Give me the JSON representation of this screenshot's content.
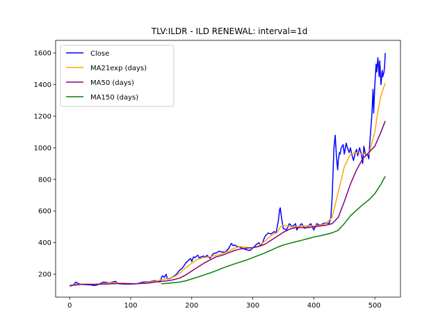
{
  "chart_data": {
    "type": "line",
    "title": "TLV:ILDR - ILD RENEWAL: interval=1d",
    "xlabel": "",
    "ylabel": "",
    "xlim": [
      -23,
      542
    ],
    "ylim": [
      55,
      1680
    ],
    "xticks": [
      0,
      100,
      200,
      300,
      400,
      500
    ],
    "yticks": [
      200,
      400,
      600,
      800,
      1000,
      1200,
      1400,
      1600
    ],
    "grid": false,
    "legend": "top-left",
    "series": [
      {
        "name": "Close",
        "color": "#0000ff",
        "x": [
          0,
          5,
          8,
          10,
          12,
          15,
          20,
          30,
          35,
          40,
          45,
          50,
          55,
          60,
          65,
          70,
          75,
          80,
          90,
          100,
          110,
          120,
          130,
          140,
          145,
          148,
          150,
          152,
          155,
          158,
          160,
          165,
          170,
          175,
          180,
          185,
          190,
          195,
          198,
          200,
          203,
          205,
          210,
          213,
          215,
          220,
          222,
          225,
          230,
          235,
          240,
          245,
          250,
          255,
          260,
          265,
          268,
          270,
          275,
          280,
          285,
          290,
          295,
          300,
          305,
          310,
          313,
          315,
          320,
          325,
          330,
          335,
          338,
          340,
          342,
          344,
          345,
          347,
          350,
          355,
          360,
          365,
          370,
          372,
          375,
          380,
          385,
          390,
          395,
          400,
          405,
          410,
          415,
          420,
          425,
          428,
          430,
          433,
          435,
          437,
          439,
          440,
          442,
          443,
          445,
          448,
          450,
          453,
          455,
          458,
          460,
          462,
          465,
          468,
          470,
          472,
          475,
          478,
          480,
          482,
          485,
          488,
          490,
          492,
          495,
          497,
          498,
          500,
          502,
          503,
          505,
          507,
          508,
          510,
          512,
          513,
          515,
          516,
          517
        ],
        "y": [
          125,
          130,
          140,
          150,
          145,
          140,
          135,
          133,
          132,
          128,
          132,
          140,
          150,
          148,
          145,
          150,
          155,
          140,
          138,
          138,
          140,
          150,
          152,
          160,
          155,
          150,
          175,
          190,
          180,
          200,
          170,
          175,
          185,
          200,
          225,
          240,
          270,
          290,
          300,
          280,
          310,
          305,
          320,
          300,
          310,
          315,
          305,
          320,
          300,
          330,
          335,
          345,
          340,
          340,
          360,
          395,
          380,
          385,
          375,
          370,
          360,
          355,
          350,
          365,
          385,
          400,
          380,
          390,
          440,
          460,
          455,
          470,
          460,
          500,
          540,
          610,
          620,
          560,
          490,
          480,
          520,
          500,
          520,
          480,
          500,
          520,
          490,
          500,
          520,
          480,
          520,
          510,
          520,
          525,
          520,
          560,
          690,
          1000,
          1080,
          950,
          860,
          920,
          970,
          960,
          1000,
          1020,
          960,
          1030,
          1000,
          970,
          1000,
          960,
          920,
          970,
          990,
          950,
          1000,
          960,
          900,
          1010,
          950,
          960,
          930,
          1050,
          1200,
          1370,
          1220,
          1400,
          1530,
          1480,
          1570,
          1450,
          1550,
          1400,
          1490,
          1450,
          1480,
          1520,
          1600
        ]
      },
      {
        "name": "MA21exp (days)",
        "color": "#ffa500",
        "x": [
          0,
          10,
          20,
          30,
          40,
          50,
          60,
          70,
          80,
          90,
          100,
          110,
          120,
          130,
          140,
          150,
          160,
          170,
          180,
          190,
          200,
          210,
          220,
          230,
          240,
          250,
          260,
          270,
          280,
          290,
          300,
          310,
          320,
          330,
          340,
          345,
          350,
          360,
          370,
          380,
          390,
          400,
          410,
          420,
          430,
          440,
          450,
          460,
          470,
          480,
          490,
          500,
          505,
          510,
          517
        ],
        "y": [
          128,
          135,
          138,
          138,
          136,
          137,
          143,
          146,
          145,
          142,
          140,
          140,
          145,
          150,
          155,
          165,
          172,
          182,
          205,
          240,
          270,
          295,
          305,
          310,
          320,
          330,
          345,
          365,
          375,
          370,
          365,
          380,
          410,
          445,
          465,
          500,
          510,
          500,
          500,
          505,
          505,
          505,
          510,
          520,
          560,
          720,
          880,
          960,
          970,
          960,
          960,
          1100,
          1230,
          1330,
          1410
        ]
      },
      {
        "name": "MA50 (days)",
        "color": "#800080",
        "x": [
          0,
          10,
          20,
          30,
          40,
          50,
          60,
          70,
          80,
          90,
          100,
          110,
          120,
          130,
          140,
          150,
          160,
          170,
          180,
          190,
          200,
          210,
          220,
          230,
          240,
          250,
          260,
          270,
          280,
          290,
          300,
          310,
          320,
          330,
          340,
          350,
          360,
          370,
          380,
          390,
          400,
          410,
          420,
          430,
          440,
          450,
          460,
          470,
          480,
          490,
          500,
          510,
          517
        ],
        "y": [
          128,
          132,
          135,
          136,
          136,
          137,
          138,
          140,
          141,
          141,
          140,
          140,
          142,
          145,
          150,
          155,
          158,
          165,
          175,
          195,
          220,
          245,
          270,
          290,
          310,
          320,
          335,
          350,
          360,
          365,
          368,
          375,
          390,
          415,
          440,
          465,
          485,
          495,
          495,
          495,
          500,
          505,
          510,
          520,
          560,
          660,
          770,
          860,
          930,
          970,
          1010,
          1100,
          1170
        ]
      },
      {
        "name": "MA150 (days)",
        "color": "#008000",
        "x": [
          150,
          160,
          170,
          180,
          190,
          200,
          210,
          220,
          230,
          240,
          250,
          260,
          270,
          280,
          290,
          300,
          310,
          320,
          330,
          340,
          350,
          360,
          370,
          380,
          390,
          400,
          410,
          420,
          430,
          440,
          450,
          460,
          470,
          480,
          490,
          500,
          510,
          517
        ],
        "y": [
          140,
          142,
          146,
          150,
          158,
          170,
          182,
          195,
          208,
          222,
          238,
          252,
          265,
          278,
          290,
          305,
          320,
          335,
          352,
          370,
          385,
          395,
          405,
          415,
          425,
          435,
          443,
          452,
          462,
          478,
          520,
          570,
          605,
          640,
          670,
          710,
          770,
          820
        ]
      }
    ]
  }
}
